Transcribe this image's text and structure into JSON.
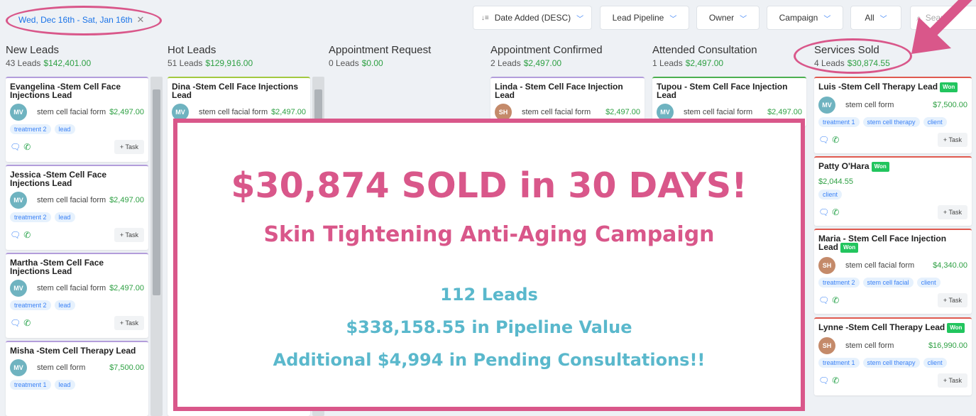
{
  "filters": {
    "date_range": "Wed, Dec 16th - Sat, Jan 16th",
    "sort": "Date Added (DESC)",
    "pipeline": "Lead Pipeline",
    "owner": "Owner",
    "campaign": "Campaign",
    "status": "All",
    "search_placeholder": "Search"
  },
  "columns": [
    {
      "title": "New Leads",
      "count": "43 Leads",
      "value": "$142,401.00"
    },
    {
      "title": "Hot Leads",
      "count": "51 Leads",
      "value": "$129,916.00"
    },
    {
      "title": "Appointment Request",
      "count": "0 Leads",
      "value": "$0.00"
    },
    {
      "title": "Appointment Confirmed",
      "count": "2 Leads",
      "value": "$2,497.00"
    },
    {
      "title": "Attended Consultation",
      "count": "1 Leads",
      "value": "$2,497.00"
    },
    {
      "title": "Services Sold",
      "count": "4 Leads",
      "value": "$30,874.55"
    }
  ],
  "cards": {
    "new": [
      {
        "title": "Evangelina -Stem Cell Face Injections Lead",
        "avatar": "MV",
        "form": "stem cell facial form",
        "value": "$2,497.00",
        "tags": [
          "treatment 2",
          "lead"
        ]
      },
      {
        "title": "Jessica -Stem Cell Face Injections Lead",
        "avatar": "MV",
        "form": "stem cell facial form",
        "value": "$2,497.00",
        "tags": [
          "treatment 2",
          "lead"
        ]
      },
      {
        "title": "Martha -Stem Cell Face Injections Lead",
        "avatar": "MV",
        "form": "stem cell facial form",
        "value": "$2,497.00",
        "tags": [
          "treatment 2",
          "lead"
        ]
      },
      {
        "title": "Misha -Stem Cell Therapy Lead",
        "avatar": "MV",
        "form": "stem cell form",
        "value": "$7,500.00",
        "tags": [
          "treatment 1",
          "lead"
        ]
      }
    ],
    "hot": [
      {
        "title": "Dina -Stem Cell Face Injections Lead",
        "avatar": "MV",
        "form": "stem cell facial form",
        "value": "$2,497.00"
      }
    ],
    "confirmed": [
      {
        "title": "Linda - Stem Cell Face Injection Lead",
        "avatar": "SH",
        "form": "stem cell facial form",
        "value": "$2,497.00"
      }
    ],
    "attended": [
      {
        "title": "Tupou - Stem Cell Face Injection Lead",
        "avatar": "MV",
        "form": "stem cell facial form",
        "value": "$2,497.00"
      }
    ],
    "sold": [
      {
        "title": "Luis -Stem Cell Therapy Lead",
        "won": "Won",
        "avatar": "MV",
        "form": "stem cell form",
        "value": "$7,500.00",
        "tags": [
          "treatment 1",
          "stem cell therapy",
          "client"
        ]
      },
      {
        "title": "Patty O'Hara",
        "won": "Won",
        "value": "$2,044.55",
        "tags": [
          "client"
        ]
      },
      {
        "title": "Maria - Stem Cell Face Injection Lead",
        "won": "Won",
        "avatar": "SH",
        "form": "stem cell facial form",
        "value": "$4,340.00",
        "tags": [
          "treatment 2",
          "stem cell facial",
          "client"
        ]
      },
      {
        "title": "Lynne -Stem Cell Therapy Lead",
        "won": "Won",
        "avatar": "SH",
        "form": "stem cell form",
        "value": "$16,990.00",
        "tags": [
          "treatment 1",
          "stem cell therapy",
          "client"
        ]
      }
    ]
  },
  "task_label": "+ Task",
  "overlay": {
    "headline": "$30,874 SOLD in 30 DAYS!",
    "subheadline": "Skin Tightening Anti-Aging Campaign",
    "line1": "112 Leads",
    "line2": "$338,158.55 in Pipeline Value",
    "line3": "Additional $4,994 in Pending Consultations!!"
  },
  "colors": {
    "accent_pink": "#d9578a",
    "accent_teal": "#5ab8cc",
    "money_green": "#2ea043",
    "won_green": "#22c55e"
  }
}
